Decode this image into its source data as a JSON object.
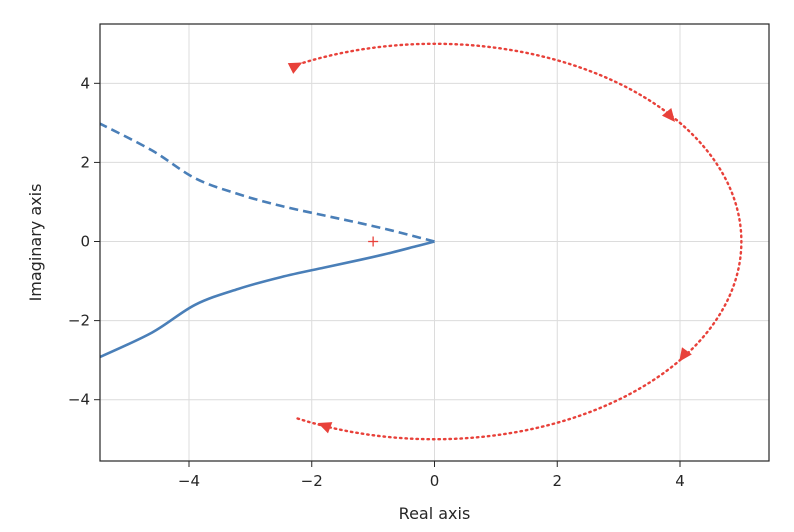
{
  "chart_data": {
    "type": "line",
    "title": "",
    "xlabel": "Real axis",
    "ylabel": "Imaginary axis",
    "xlim": [
      -5.45,
      5.45
    ],
    "ylim": [
      -5.55,
      5.5
    ],
    "grid": true,
    "x_ticks": [
      {
        "value": -4,
        "label": "−4"
      },
      {
        "value": -2,
        "label": "−2"
      },
      {
        "value": 0,
        "label": "0"
      },
      {
        "value": 2,
        "label": "2"
      },
      {
        "value": 4,
        "label": "4"
      }
    ],
    "y_ticks": [
      {
        "value": -4,
        "label": "−4"
      },
      {
        "value": -2,
        "label": "−2"
      },
      {
        "value": 0,
        "label": "0"
      },
      {
        "value": 2,
        "label": "2"
      },
      {
        "value": 4,
        "label": "4"
      }
    ],
    "series": [
      {
        "style": "solid",
        "color": "#4a7fb8",
        "points": [
          [
            0,
            0
          ],
          [
            -0.3,
            -0.12
          ],
          [
            -0.7,
            -0.28
          ],
          [
            -1.2,
            -0.46
          ],
          [
            -1.8,
            -0.66
          ],
          [
            -2.5,
            -0.9
          ],
          [
            -3.2,
            -1.2
          ],
          [
            -3.9,
            -1.6
          ],
          [
            -4.6,
            -2.3
          ],
          [
            -5.45,
            -2.92
          ]
        ]
      },
      {
        "style": "dashed",
        "color": "#4a7fb8",
        "points": [
          [
            0,
            0
          ],
          [
            -0.3,
            0.12
          ],
          [
            -0.7,
            0.28
          ],
          [
            -1.2,
            0.46
          ],
          [
            -1.8,
            0.66
          ],
          [
            -2.5,
            0.9
          ],
          [
            -3.2,
            1.2
          ],
          [
            -3.9,
            1.6
          ],
          [
            -4.6,
            2.3
          ],
          [
            -5.45,
            2.98
          ]
        ]
      },
      {
        "style": "dotted",
        "color": "#e8413a",
        "shape": "ellipse",
        "center": [
          0,
          0
        ],
        "radius_x": 5,
        "radius_y": 5,
        "theta_range_deg": [
          -116.5,
          116.5
        ],
        "arrows": [
          {
            "at": [
              -2.25,
              4.45
            ],
            "direction": "right"
          },
          {
            "at": [
              3.85,
              3.15
            ],
            "direction": "down"
          },
          {
            "at": [
              4.05,
              -2.9
            ],
            "direction": "down-left"
          },
          {
            "at": [
              -1.8,
              -4.65
            ],
            "direction": "left"
          }
        ]
      }
    ],
    "markers": [
      {
        "x": -1,
        "y": 0,
        "symbol": "+",
        "color": "#e8413a"
      }
    ]
  }
}
